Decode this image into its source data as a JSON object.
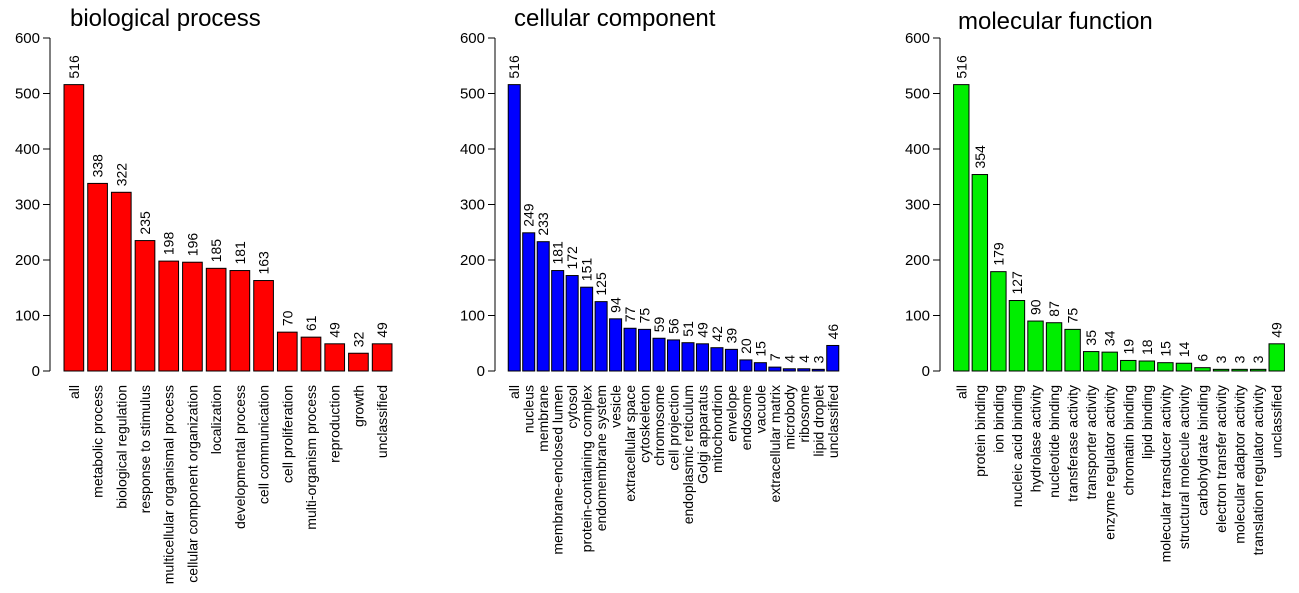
{
  "chart_data": [
    {
      "type": "bar",
      "title": "biological process",
      "ylim": [
        0,
        600
      ],
      "yticks": [
        0,
        100,
        200,
        300,
        400,
        500,
        600
      ],
      "bar_color": "#ff0000",
      "categories": [
        "all",
        "metabolic process",
        "biological regulation",
        "response to stimulus",
        "multicellular organismal process",
        "cellular component organization",
        "localization",
        "developmental process",
        "cell communication",
        "cell proliferation",
        "multi-organism process",
        "reproduction",
        "growth",
        "unclassified"
      ],
      "values": [
        516,
        338,
        322,
        235,
        198,
        196,
        185,
        181,
        163,
        70,
        61,
        49,
        32,
        49
      ]
    },
    {
      "type": "bar",
      "title": "cellular component",
      "ylim": [
        0,
        600
      ],
      "yticks": [
        0,
        100,
        200,
        300,
        400,
        500,
        600
      ],
      "bar_color": "#0000ff",
      "categories": [
        "all",
        "nucleus",
        "membrane",
        "membrane-enclosed lumen",
        "cytosol",
        "protein-containing complex",
        "endomembrane system",
        "vesicle",
        "extracellular space",
        "cytoskeleton",
        "chromosome",
        "cell projection",
        "endoplasmic reticulum",
        "Golgi apparatus",
        "mitochondrion",
        "envelope",
        "endosome",
        "vacuole",
        "extracellular matrix",
        "microbody",
        "ribosome",
        "lipid droplet",
        "unclassified"
      ],
      "values": [
        516,
        249,
        233,
        181,
        172,
        151,
        125,
        94,
        77,
        75,
        59,
        56,
        51,
        49,
        42,
        39,
        20,
        15,
        7,
        4,
        4,
        3,
        46
      ]
    },
    {
      "type": "bar",
      "title": "molecular function",
      "ylim": [
        0,
        600
      ],
      "yticks": [
        0,
        100,
        200,
        300,
        400,
        500,
        600
      ],
      "bar_color": "#00ee00",
      "categories": [
        "all",
        "protein binding",
        "ion binding",
        "nucleic acid binding",
        "hydrolase activity",
        "nucleotide binding",
        "transferase activity",
        "transporter activity",
        "enzyme regulator activity",
        "chromatin binding",
        "lipid binding",
        "molecular transducer activity",
        "structural molecule activity",
        "carbohydrate binding",
        "electron transfer activity",
        "molecular adaptor activity",
        "translation regulator activity",
        "unclassified"
      ],
      "values": [
        516,
        354,
        179,
        127,
        90,
        87,
        75,
        35,
        34,
        19,
        18,
        15,
        14,
        6,
        3,
        3,
        3,
        49
      ]
    }
  ]
}
